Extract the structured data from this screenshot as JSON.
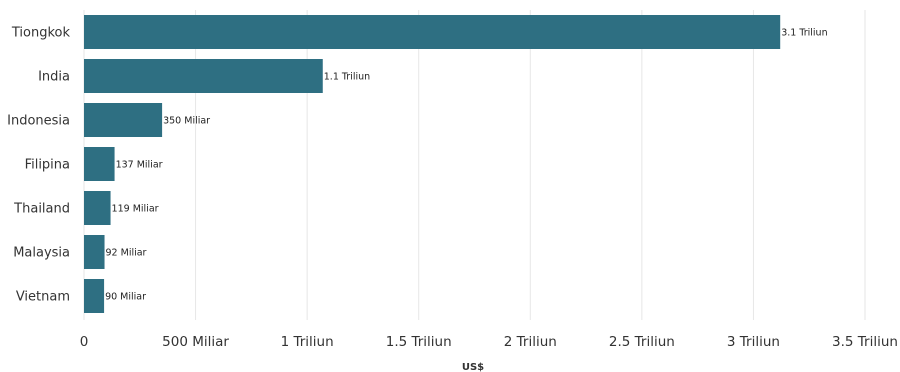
{
  "chart_data": {
    "type": "bar",
    "orientation": "horizontal",
    "title": "",
    "xlabel": "US$",
    "ylabel": "",
    "categories": [
      "Tiongkok",
      "India",
      "Indonesia",
      "Filipina",
      "Thailand",
      "Malaysia",
      "Vietnam"
    ],
    "values": [
      3120000000000,
      1070000000000,
      350000000000,
      137000000000,
      119000000000,
      92000000000,
      90000000000
    ],
    "data_labels": [
      "3.1 Triliun",
      "1.1 Triliun",
      "350 Miliar",
      "137 Miliar",
      "119 Miliar",
      "92 Miliar",
      "90 Miliar"
    ],
    "xlim": [
      0,
      3500000000000
    ],
    "x_ticks": [
      0,
      500000000000,
      1000000000000,
      1500000000000,
      2000000000000,
      2500000000000,
      3000000000000,
      3500000000000
    ],
    "x_tick_labels": [
      "0",
      "500 Miliar",
      "1 Triliun",
      "1.5 Triliun",
      "2 Triliun",
      "2.5 Triliun",
      "3 Triliun",
      "3.5 Triliun"
    ],
    "grid": true,
    "legend": "none",
    "bar_color": "#2e6f82"
  }
}
